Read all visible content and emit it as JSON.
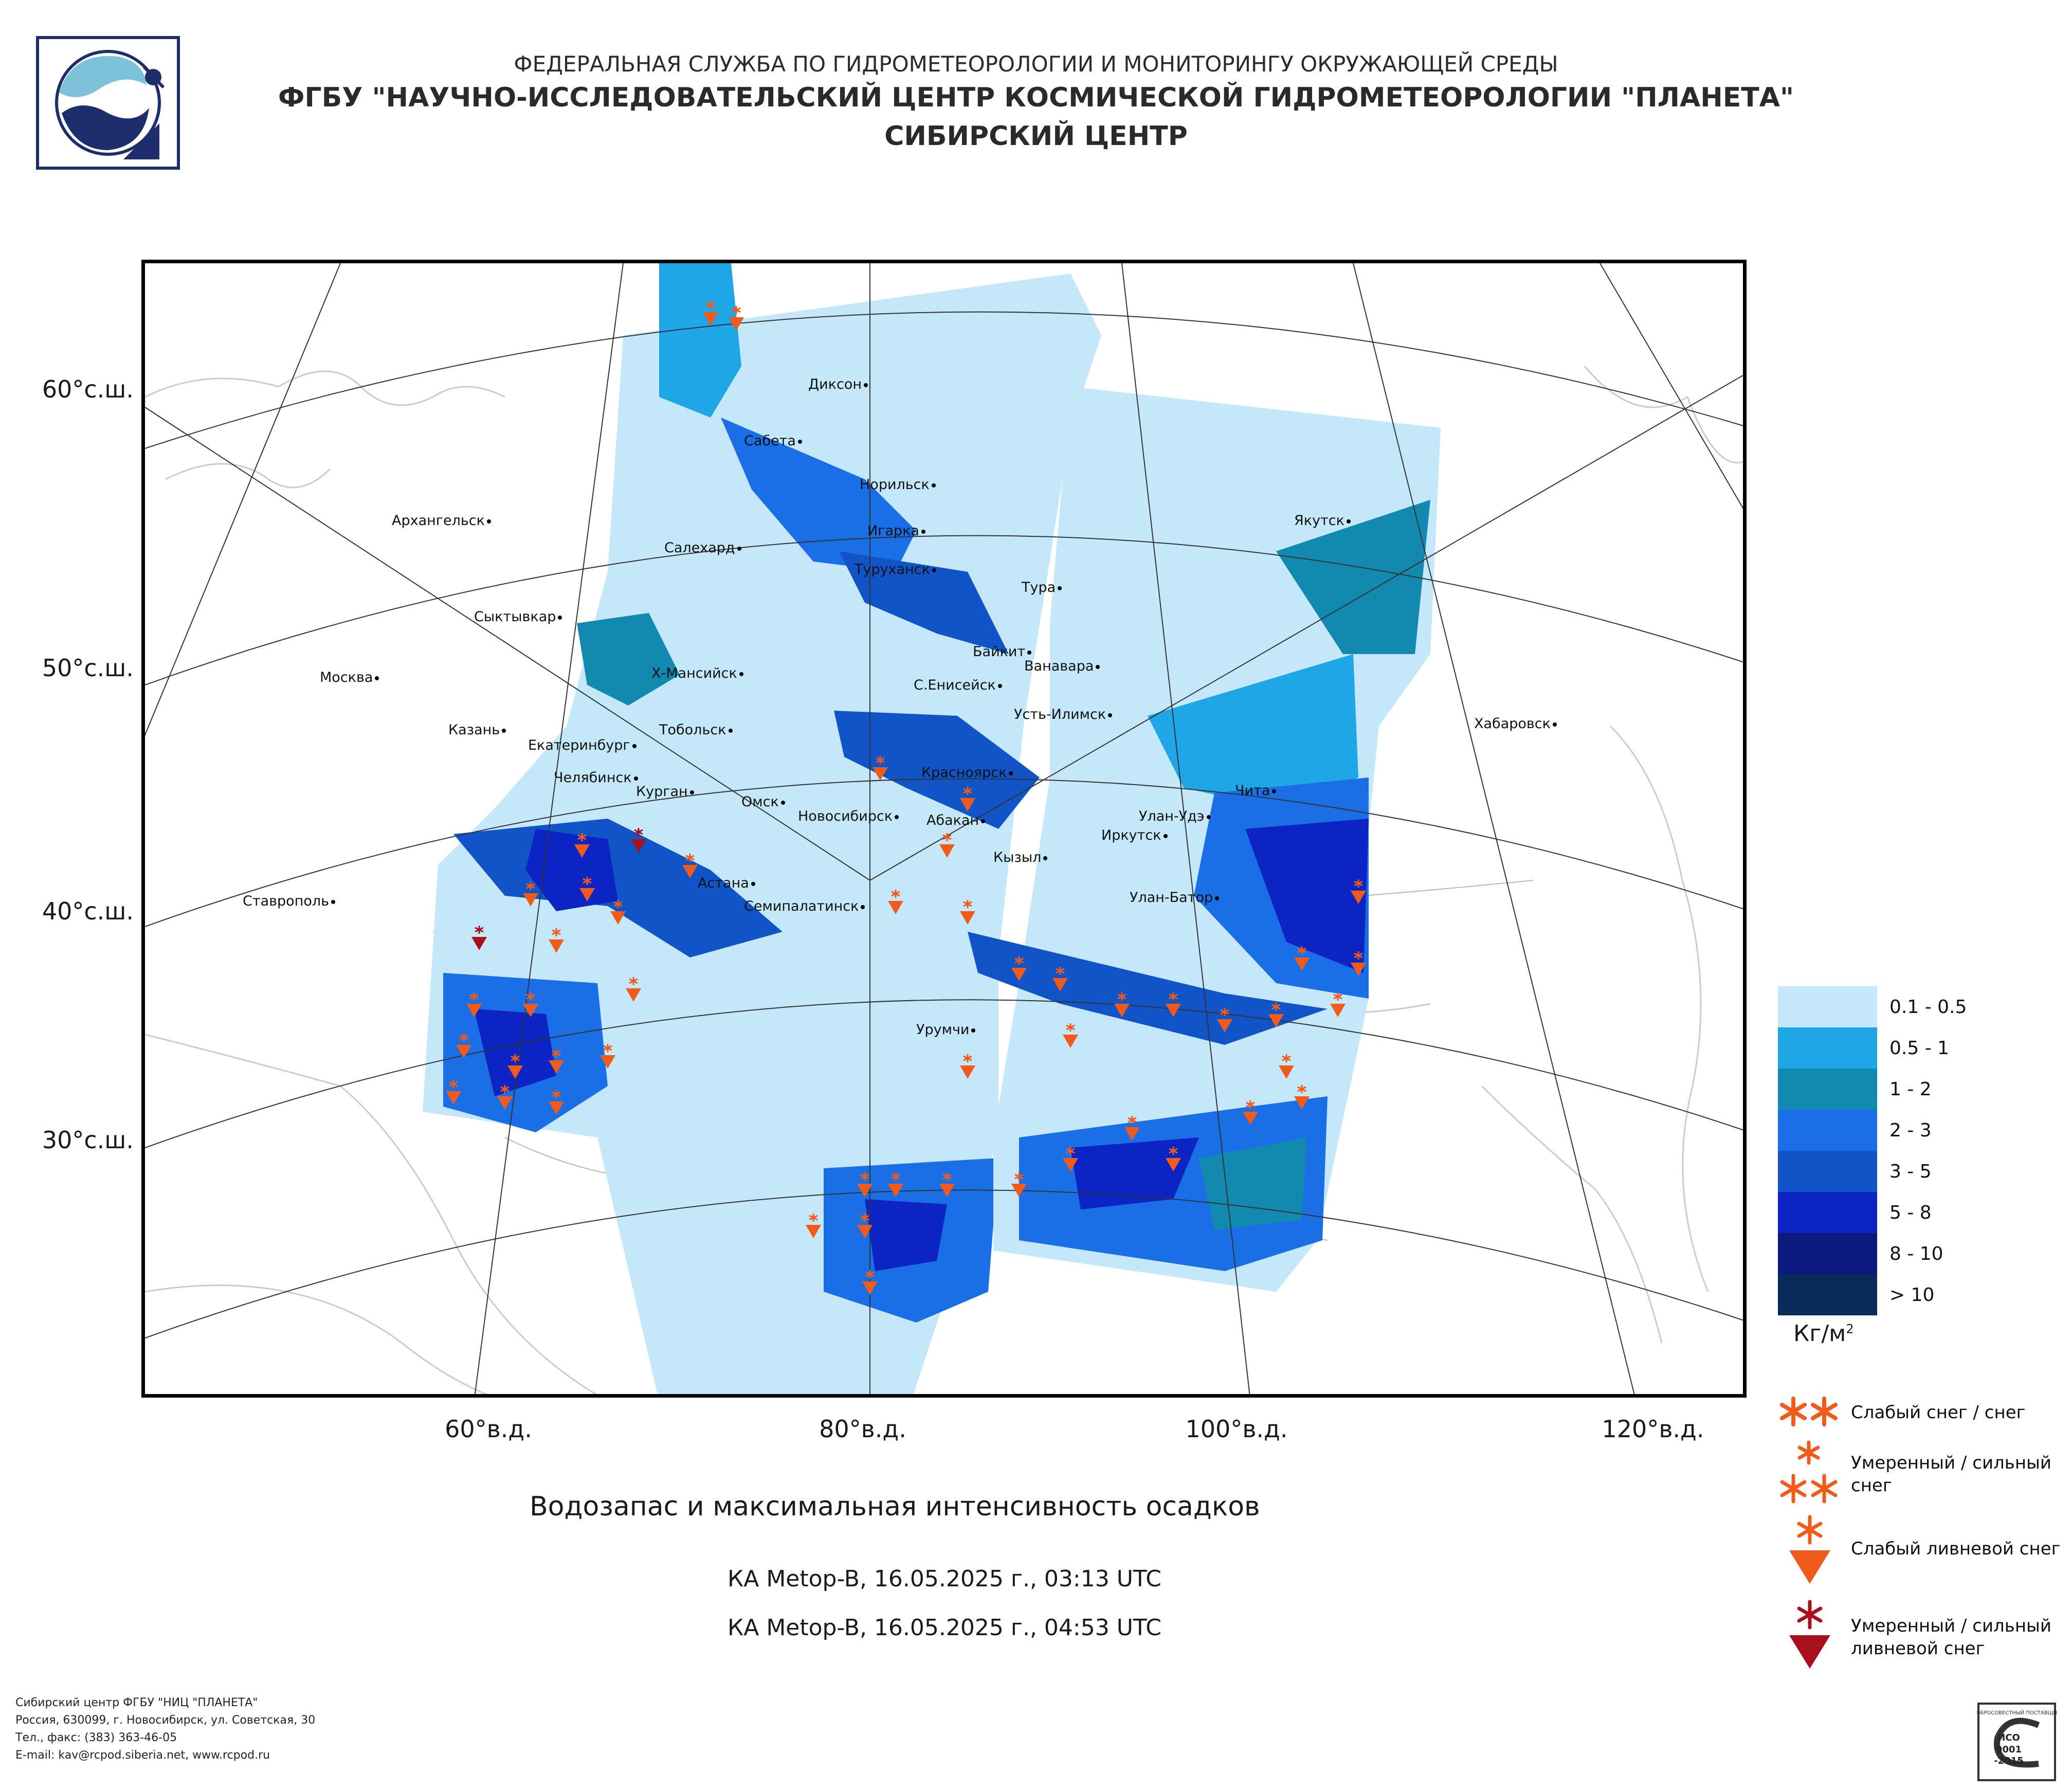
{
  "header": {
    "agency": "ФЕДЕРАЛЬНАЯ СЛУЖБА ПО ГИДРОМЕТЕОРОЛОГИИ И МОНИТОРИНГУ ОКРУЖАЮЩЕЙ СРЕДЫ",
    "organization": "ФГБУ \"НАУЧНО-ИССЛЕДОВАТЕЛЬСКИЙ ЦЕНТР КОСМИЧЕСКОЙ ГИДРОМЕТЕОРОЛОГИИ \"ПЛАНЕТА\"",
    "center": "СИБИРСКИЙ ЦЕНТР"
  },
  "map": {
    "latitude_labels": [
      "60°с.ш.",
      "50°с.ш.",
      "40°с.ш.",
      "30°с.ш."
    ],
    "longitude_labels": [
      "60°в.д.",
      "80°в.д.",
      "100°в.д.",
      "120°в.д."
    ],
    "cities": [
      "Диксон",
      "Сабета",
      "Норильск",
      "Игарка",
      "Архангельск",
      "Салехард",
      "Туруханск",
      "Якутск",
      "Тура",
      "Сыктывкар",
      "Байкит",
      "Ванавара",
      "Х-Мансийск",
      "Москва",
      "С.Енисейск",
      "Усть-Илимск",
      "Хабаровск",
      "Казань",
      "Тобольск",
      "Екатеринбург",
      "Челябинск",
      "Красноярск",
      "Курган",
      "Чита",
      "Омск",
      "Новосибирск",
      "Улан-Удэ",
      "Абакан",
      "Иркутск",
      "Кызыл",
      "Астана",
      "Улан-Батор",
      "Семипалатинск",
      "Ставрополь",
      "Урумчи"
    ]
  },
  "title": "Водозапас и максимальная интенсивность осадков",
  "passes": [
    "КА Metop-B, 16.05.2025 г., 03:13 UTC",
    "КА Metop-B, 16.05.2025 г., 04:53 UTC"
  ],
  "legend": {
    "classes": [
      {
        "label": "0.1 - 0.5",
        "color": "#c4e8fa"
      },
      {
        "label": "0.5 - 1",
        "color": "#1ea6e6"
      },
      {
        "label": "1 - 2",
        "color": "#1289ae"
      },
      {
        "label": "2 - 3",
        "color": "#1a6fe6"
      },
      {
        "label": "3 - 5",
        "color": "#1054c8"
      },
      {
        "label": "5 - 8",
        "color": "#0d24c4"
      },
      {
        "label": "8 - 10",
        "color": "#0c1a80"
      },
      {
        "label": "> 10",
        "color": "#0a2a5a"
      }
    ],
    "units": "Кг/м",
    "units_sup": "2",
    "symbols": [
      {
        "label": "Слабый снег / снег",
        "icon": "double-asterisk-icon",
        "color": "#f05a1a"
      },
      {
        "label": "Умеренный / сильный снег",
        "icon": "triple-asterisk-icon",
        "color": "#f05a1a"
      },
      {
        "label": "Слабый ливневой снег",
        "icon": "asterisk-triangle-icon",
        "color": "#f05a1a"
      },
      {
        "label": "Умеренный / сильный ливневой снег",
        "icon": "asterisk-triangle-icon",
        "color": "#a8101e"
      }
    ]
  },
  "footer": {
    "lines": [
      "Сибирский центр ФГБУ \"НИЦ \"ПЛАНЕТА\"",
      "Россия, 630099, г. Новосибирск, ул. Советская, 30",
      "Тел., факс: (383) 363-46-05",
      "E-mail: kav@rcpod.siberia.net, www.rcpod.ru"
    ],
    "iso_badge": [
      "ДОБРОСОВЕСТНЫЙ ПОСТАВЩИК",
      "ИСО",
      "9001",
      "-2015"
    ]
  }
}
